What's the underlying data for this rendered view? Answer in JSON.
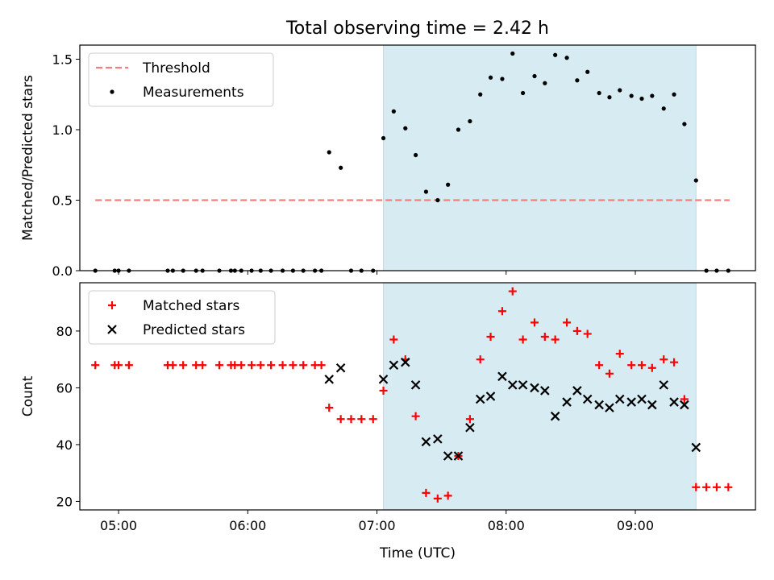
{
  "chart_data": [
    {
      "type": "scatter",
      "title": "Total observing time = 2.42 h",
      "ylabel": "Matched/Predicted stars",
      "ylim": [
        0,
        1.6
      ],
      "yticks": [
        0,
        0.5,
        1.0,
        1.5
      ],
      "ytick_labels": [
        "0.0",
        "0.5",
        "1.0",
        "1.5"
      ],
      "x_unit": "hours UTC",
      "xlim": [
        4.7,
        9.93
      ],
      "xticks": [
        5,
        6,
        7,
        8,
        9
      ],
      "xtick_labels": [
        "",
        "",
        "",
        "",
        ""
      ],
      "observing_window": [
        7.05,
        9.47
      ],
      "observing_color": "#add8e6",
      "legend_position": "upper-left",
      "threshold": {
        "name": "Threshold",
        "value": 0.5,
        "x_range": [
          4.82,
          9.73
        ],
        "color": "#f08080",
        "style": "dashed"
      },
      "series": [
        {
          "name": "Measurements",
          "marker": "dot",
          "color": "#000000",
          "points": [
            [
              4.82,
              0
            ],
            [
              4.97,
              0
            ],
            [
              5.0,
              0
            ],
            [
              5.08,
              0
            ],
            [
              5.38,
              0
            ],
            [
              5.42,
              0
            ],
            [
              5.5,
              0
            ],
            [
              5.6,
              0
            ],
            [
              5.65,
              0
            ],
            [
              5.78,
              0
            ],
            [
              5.87,
              0
            ],
            [
              5.9,
              0
            ],
            [
              5.95,
              0
            ],
            [
              6.03,
              0
            ],
            [
              6.1,
              0
            ],
            [
              6.18,
              0
            ],
            [
              6.27,
              0
            ],
            [
              6.35,
              0
            ],
            [
              6.43,
              0
            ],
            [
              6.52,
              0
            ],
            [
              6.57,
              0
            ],
            [
              6.63,
              0.84
            ],
            [
              6.72,
              0.73
            ],
            [
              6.8,
              0
            ],
            [
              6.88,
              0
            ],
            [
              6.97,
              0
            ],
            [
              7.05,
              0.94
            ],
            [
              7.13,
              1.13
            ],
            [
              7.22,
              1.01
            ],
            [
              7.3,
              0.82
            ],
            [
              7.38,
              0.56
            ],
            [
              7.47,
              0.5
            ],
            [
              7.55,
              0.61
            ],
            [
              7.63,
              1.0
            ],
            [
              7.72,
              1.06
            ],
            [
              7.8,
              1.25
            ],
            [
              7.88,
              1.37
            ],
            [
              7.97,
              1.36
            ],
            [
              8.05,
              1.54
            ],
            [
              8.13,
              1.26
            ],
            [
              8.22,
              1.38
            ],
            [
              8.3,
              1.33
            ],
            [
              8.38,
              1.53
            ],
            [
              8.47,
              1.51
            ],
            [
              8.55,
              1.35
            ],
            [
              8.63,
              1.41
            ],
            [
              8.72,
              1.26
            ],
            [
              8.8,
              1.23
            ],
            [
              8.88,
              1.28
            ],
            [
              8.97,
              1.24
            ],
            [
              9.05,
              1.22
            ],
            [
              9.13,
              1.24
            ],
            [
              9.22,
              1.15
            ],
            [
              9.3,
              1.25
            ],
            [
              9.38,
              1.04
            ],
            [
              9.47,
              0.64
            ],
            [
              9.55,
              0
            ],
            [
              9.63,
              0
            ],
            [
              9.72,
              0
            ]
          ]
        }
      ]
    },
    {
      "type": "scatter",
      "title": "",
      "xlabel": "Time (UTC)",
      "ylabel": "Count",
      "ylim": [
        17,
        97
      ],
      "yticks": [
        20,
        40,
        60,
        80
      ],
      "ytick_labels": [
        "20",
        "40",
        "60",
        "80"
      ],
      "x_unit": "hours UTC",
      "xlim": [
        4.7,
        9.93
      ],
      "xticks": [
        5,
        6,
        7,
        8,
        9
      ],
      "xtick_labels": [
        "05:00",
        "06:00",
        "07:00",
        "08:00",
        "09:00"
      ],
      "observing_window": [
        7.05,
        9.47
      ],
      "observing_color": "#add8e6",
      "legend_position": "upper-left",
      "series": [
        {
          "name": "Matched stars",
          "marker": "plus",
          "color": "#ff0000",
          "points": [
            [
              4.82,
              68
            ],
            [
              4.97,
              68
            ],
            [
              5.0,
              68
            ],
            [
              5.08,
              68
            ],
            [
              5.38,
              68
            ],
            [
              5.42,
              68
            ],
            [
              5.5,
              68
            ],
            [
              5.6,
              68
            ],
            [
              5.65,
              68
            ],
            [
              5.78,
              68
            ],
            [
              5.87,
              68
            ],
            [
              5.9,
              68
            ],
            [
              5.95,
              68
            ],
            [
              6.03,
              68
            ],
            [
              6.1,
              68
            ],
            [
              6.18,
              68
            ],
            [
              6.27,
              68
            ],
            [
              6.35,
              68
            ],
            [
              6.43,
              68
            ],
            [
              6.52,
              68
            ],
            [
              6.57,
              68
            ],
            [
              6.63,
              53
            ],
            [
              6.72,
              49
            ],
            [
              6.8,
              49
            ],
            [
              6.88,
              49
            ],
            [
              6.97,
              49
            ],
            [
              7.05,
              59
            ],
            [
              7.13,
              77
            ],
            [
              7.22,
              70
            ],
            [
              7.3,
              50
            ],
            [
              7.38,
              23
            ],
            [
              7.47,
              21
            ],
            [
              7.55,
              22
            ],
            [
              7.63,
              36
            ],
            [
              7.72,
              49
            ],
            [
              7.8,
              70
            ],
            [
              7.88,
              78
            ],
            [
              7.97,
              87
            ],
            [
              8.05,
              94
            ],
            [
              8.13,
              77
            ],
            [
              8.22,
              83
            ],
            [
              8.3,
              78
            ],
            [
              8.38,
              77
            ],
            [
              8.47,
              83
            ],
            [
              8.55,
              80
            ],
            [
              8.63,
              79
            ],
            [
              8.72,
              68
            ],
            [
              8.8,
              65
            ],
            [
              8.88,
              72
            ],
            [
              8.97,
              68
            ],
            [
              9.05,
              68
            ],
            [
              9.13,
              67
            ],
            [
              9.22,
              70
            ],
            [
              9.3,
              69
            ],
            [
              9.38,
              56
            ],
            [
              9.47,
              25
            ],
            [
              9.55,
              25
            ],
            [
              9.63,
              25
            ],
            [
              9.72,
              25
            ]
          ]
        },
        {
          "name": "Predicted stars",
          "marker": "x",
          "color": "#000000",
          "points": [
            [
              6.63,
              63
            ],
            [
              6.72,
              67
            ],
            [
              7.05,
              63
            ],
            [
              7.13,
              68
            ],
            [
              7.22,
              69
            ],
            [
              7.3,
              61
            ],
            [
              7.38,
              41
            ],
            [
              7.47,
              42
            ],
            [
              7.55,
              36
            ],
            [
              7.63,
              36
            ],
            [
              7.72,
              46
            ],
            [
              7.8,
              56
            ],
            [
              7.88,
              57
            ],
            [
              7.97,
              64
            ],
            [
              8.05,
              61
            ],
            [
              8.13,
              61
            ],
            [
              8.22,
              60
            ],
            [
              8.3,
              59
            ],
            [
              8.38,
              50
            ],
            [
              8.47,
              55
            ],
            [
              8.55,
              59
            ],
            [
              8.63,
              56
            ],
            [
              8.72,
              54
            ],
            [
              8.8,
              53
            ],
            [
              8.88,
              56
            ],
            [
              8.97,
              55
            ],
            [
              9.05,
              56
            ],
            [
              9.13,
              54
            ],
            [
              9.22,
              61
            ],
            [
              9.3,
              55
            ],
            [
              9.38,
              54
            ],
            [
              9.47,
              39
            ]
          ]
        }
      ]
    }
  ]
}
